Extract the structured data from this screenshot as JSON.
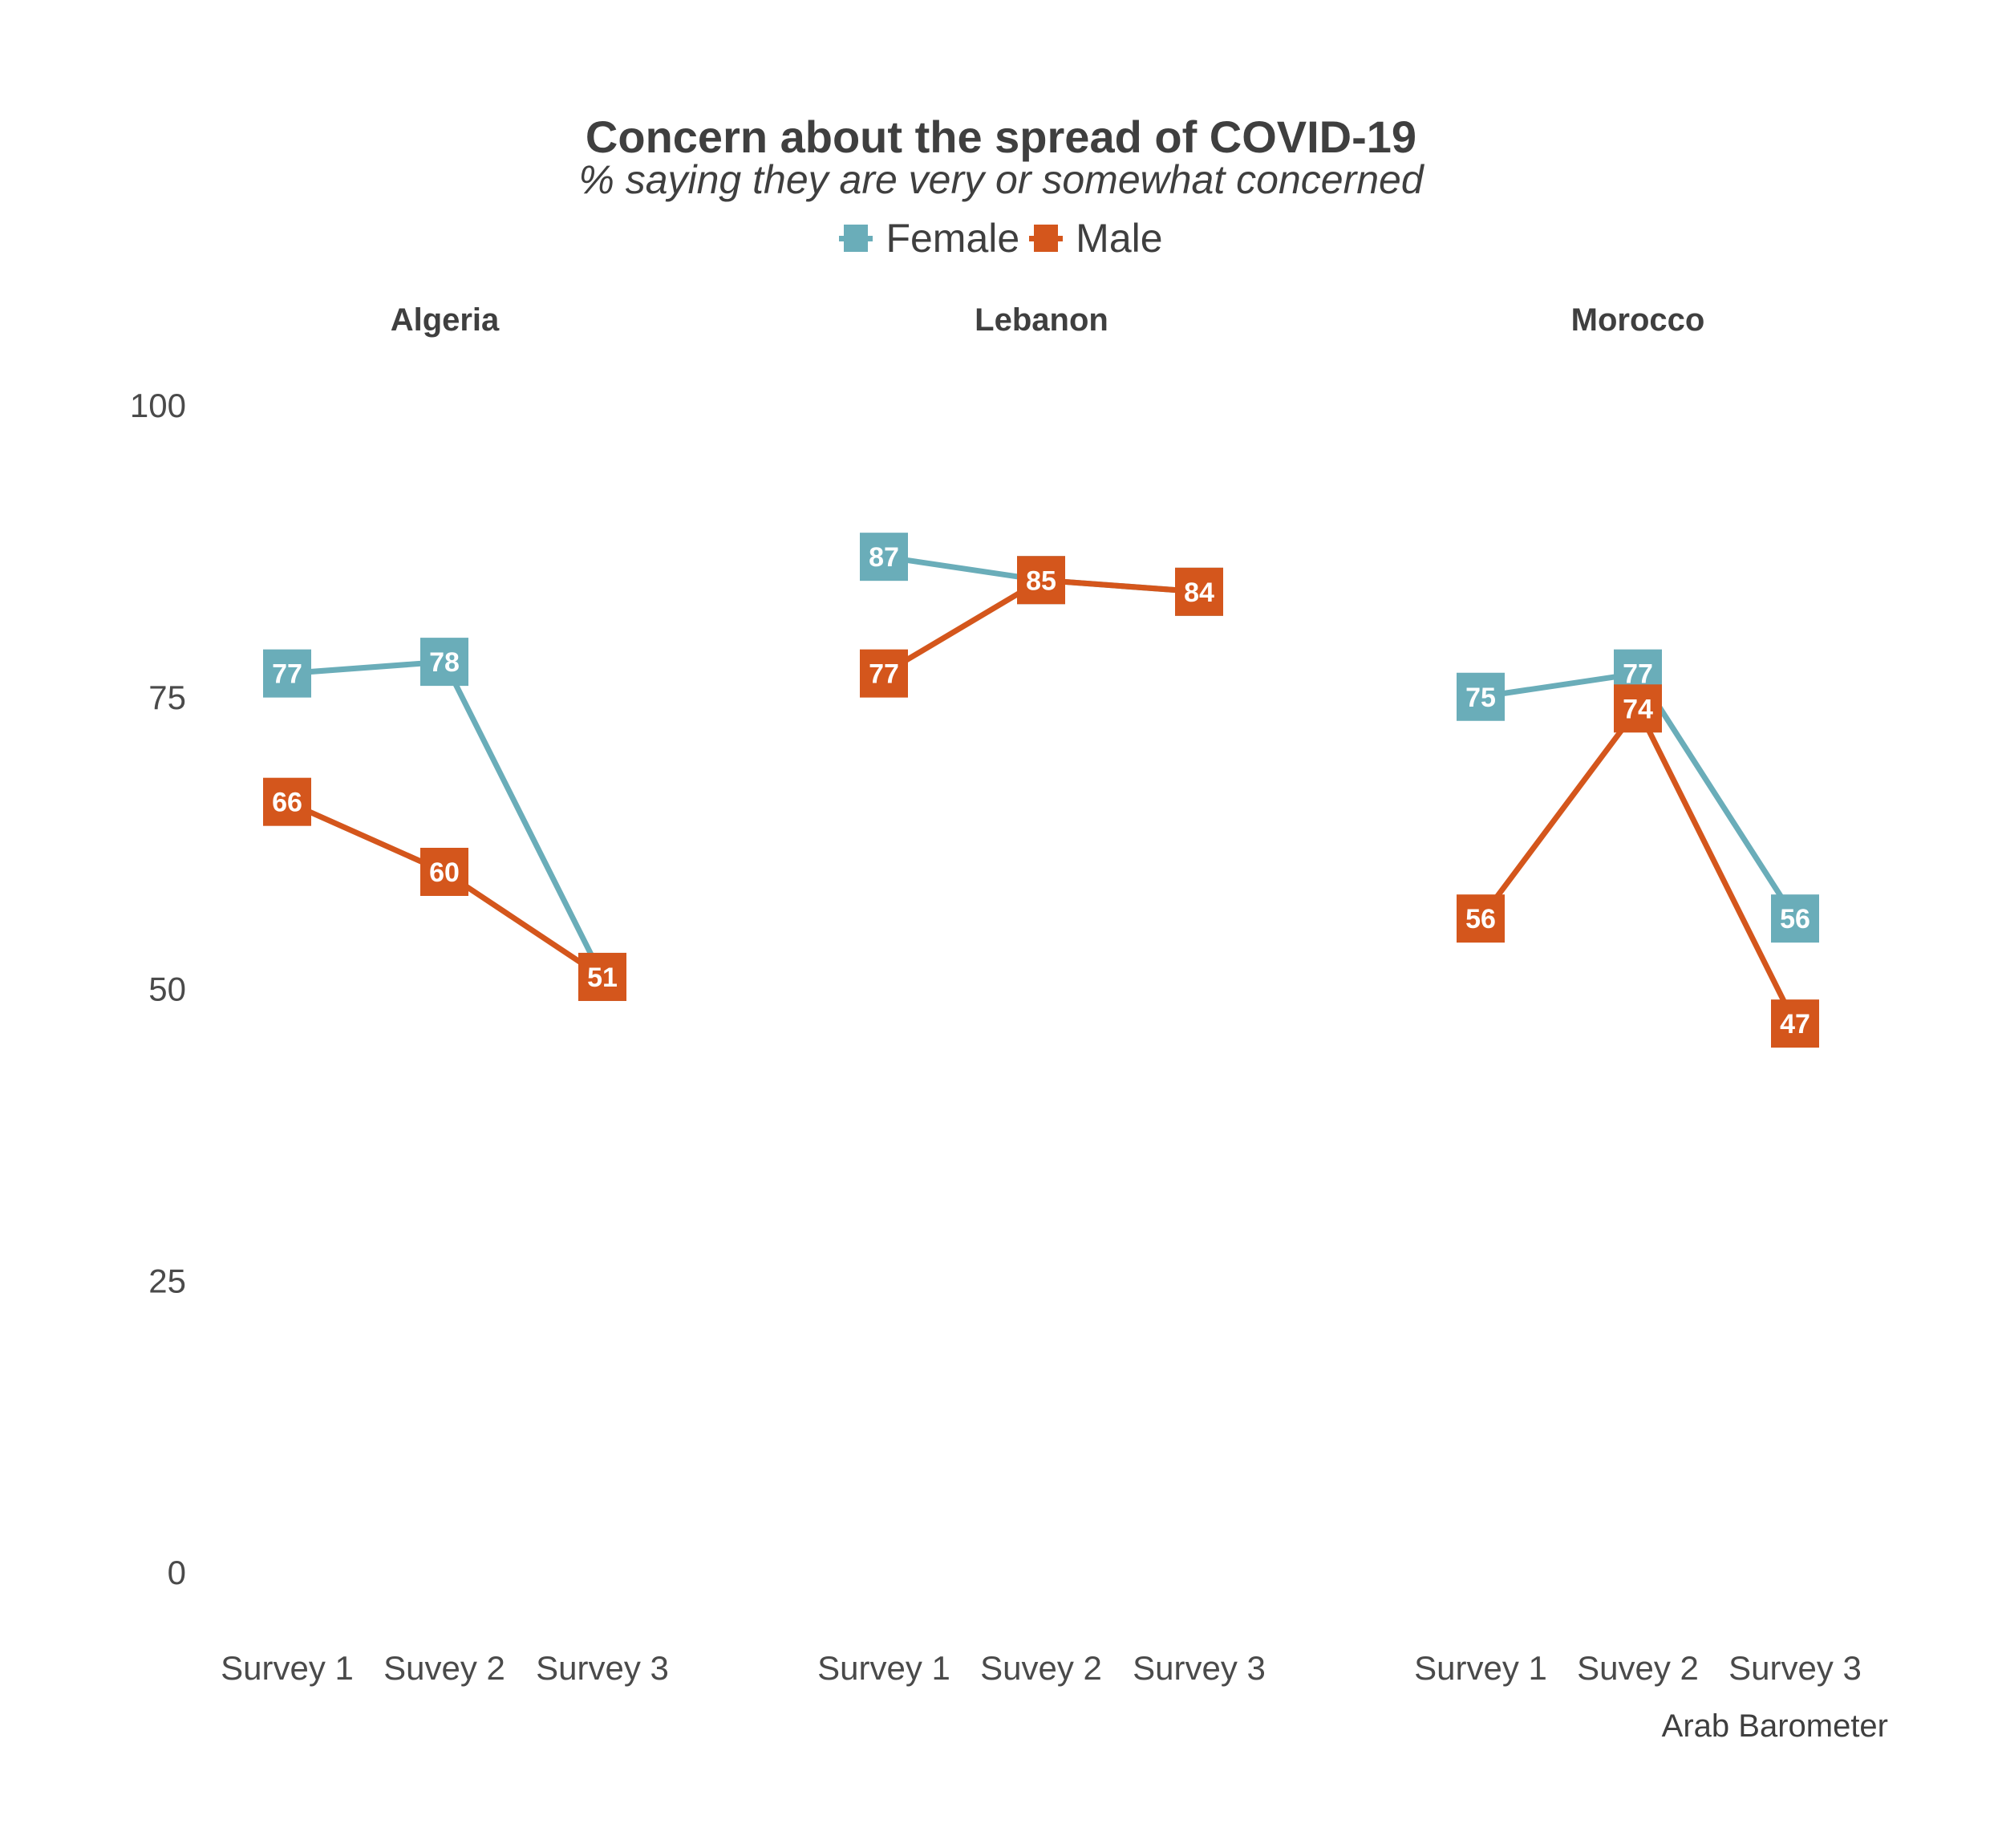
{
  "title": "Concern about the spread of COVID-19",
  "subtitle": "% saying they are very or somewhat concerned",
  "caption": "Arab Barometer",
  "legend": [
    {
      "label": "Female",
      "color": "#6aadb9"
    },
    {
      "label": "Male",
      "color": "#d4561c"
    }
  ],
  "chart_data": {
    "type": "line",
    "ylim": [
      0,
      100
    ],
    "yticks": [
      "0",
      "25",
      "50",
      "75",
      "100"
    ],
    "categories": [
      "Survey 1",
      "Suvey 2",
      "Survey 3"
    ],
    "panels": [
      {
        "name": "Algeria",
        "series": [
          {
            "name": "Female",
            "values": [
              77,
              78,
              51
            ]
          },
          {
            "name": "Male",
            "values": [
              66,
              60,
              51
            ]
          }
        ]
      },
      {
        "name": "Lebanon",
        "series": [
          {
            "name": "Female",
            "values": [
              87,
              85,
              84
            ]
          },
          {
            "name": "Male",
            "values": [
              77,
              85,
              84
            ]
          }
        ]
      },
      {
        "name": "Morocco",
        "series": [
          {
            "name": "Female",
            "values": [
              75,
              77,
              56
            ]
          },
          {
            "name": "Male",
            "values": [
              56,
              74,
              47
            ]
          }
        ]
      }
    ]
  }
}
